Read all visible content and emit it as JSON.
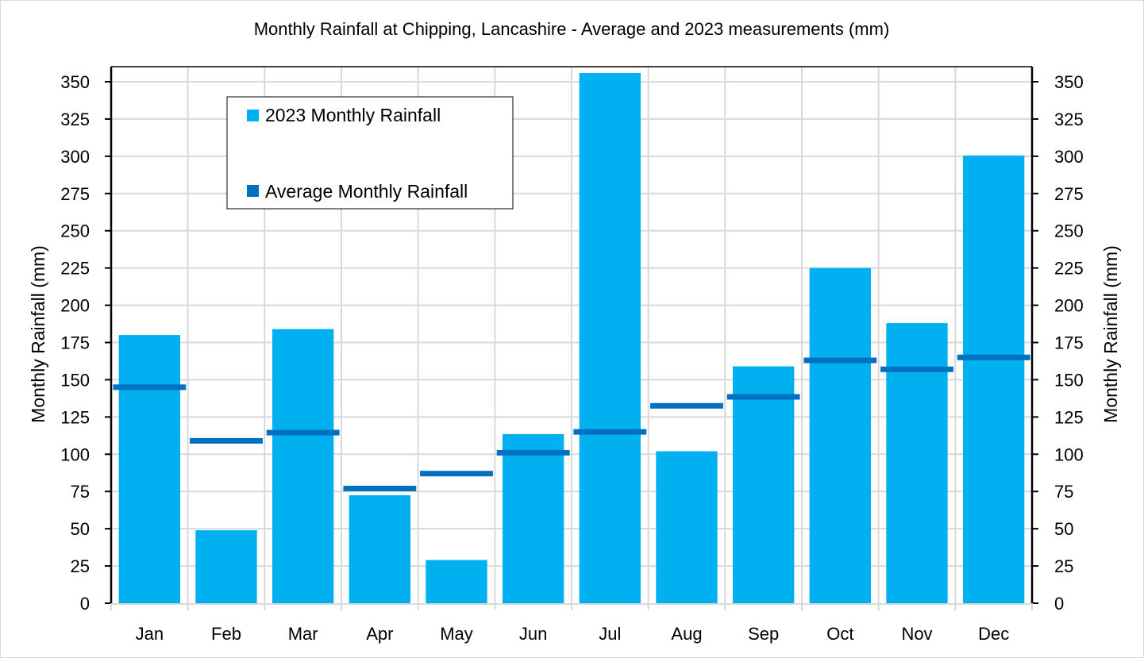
{
  "chart_data": {
    "type": "bar",
    "title": "Monthly Rainfall at Chipping, Lancashire - Average and 2023 measurements (mm)",
    "xlabel": "",
    "ylabel": "Monthly Rainfall (mm)",
    "y2label": "Monthly Rainfall (mm)",
    "ylim": [
      0,
      350
    ],
    "ytick_step": 25,
    "yticks": [
      "0",
      "25",
      "50",
      "75",
      "100",
      "125",
      "150",
      "175",
      "200",
      "225",
      "250",
      "275",
      "300",
      "325",
      "350"
    ],
    "grid": true,
    "legend_position": "top-left-inside",
    "categories": [
      "Jan",
      "Feb",
      "Mar",
      "Apr",
      "May",
      "Jun",
      "Jul",
      "Aug",
      "Sep",
      "Oct",
      "Nov",
      "Dec"
    ],
    "series": [
      {
        "name": "2023 Monthly Rainfall",
        "style": "bar",
        "color": "#00b0f0",
        "values": [
          180,
          49,
          184,
          72.5,
          29,
          113.5,
          356,
          102,
          159,
          225,
          188,
          300.5
        ]
      },
      {
        "name": "Average Monthly Rainfall",
        "style": "marker-dash",
        "color": "#0070c0",
        "values": [
          145,
          109,
          114.5,
          77,
          87,
          101,
          115,
          132.5,
          138.5,
          163,
          157,
          165
        ]
      }
    ],
    "legend": [
      {
        "label": "2023 Monthly Rainfall",
        "color": "#00b0f0"
      },
      {
        "label": "Average Monthly Rainfall",
        "color": "#0070c0"
      }
    ]
  },
  "colors": {
    "bar": "#00b0f0",
    "average": "#0070c0",
    "grid": "#d9d9d9",
    "axis": "#000000"
  }
}
